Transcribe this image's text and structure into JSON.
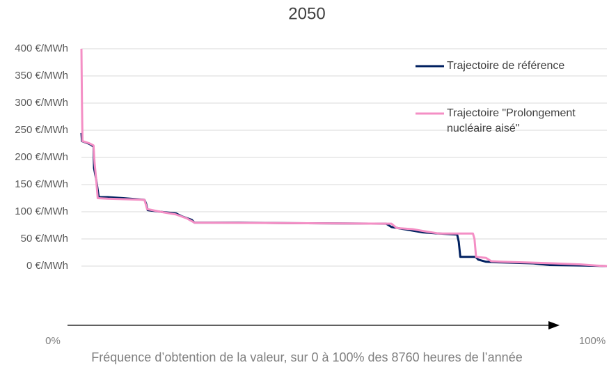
{
  "chart_data": {
    "type": "line",
    "title": "2050",
    "x_label": "Fréquence d’obtention de la valeur, sur 0 à 100% des 8760 heures de l’année",
    "xlim": [
      0,
      100
    ],
    "xticks": [
      {
        "value": 0,
        "label": "0%"
      },
      {
        "value": 100,
        "label": "100%"
      }
    ],
    "ylim": [
      0,
      400
    ],
    "yticks": [
      {
        "value": 0,
        "label": "0 €/MWh"
      },
      {
        "value": 50,
        "label": "50 €/MWh"
      },
      {
        "value": 100,
        "label": "100 €/MWh"
      },
      {
        "value": 150,
        "label": "150 €/MWh"
      },
      {
        "value": 200,
        "label": "200 €/MWh"
      },
      {
        "value": 250,
        "label": "250 €/MWh"
      },
      {
        "value": 300,
        "label": "300 €/MWh"
      },
      {
        "value": 350,
        "label": "350 €/MWh"
      },
      {
        "value": 400,
        "label": "400 €/MWh"
      }
    ],
    "grid": true,
    "legend": "upper right",
    "series": [
      {
        "name": "Trajectoire de référence",
        "color": "#002060",
        "x": [
          0,
          0.1,
          1.5,
          2.3,
          2.4,
          2.8,
          3.1,
          3.3,
          5,
          8,
          12,
          12.3,
          12.6,
          15,
          18,
          19,
          21,
          21.5,
          30,
          40,
          58,
          59,
          62,
          65,
          68,
          71.5,
          71.8,
          72.1,
          75,
          75.5,
          77,
          79,
          86,
          89,
          96,
          100
        ],
        "values": [
          245,
          230,
          225,
          220,
          180,
          160,
          140,
          127,
          127,
          125,
          122,
          115,
          103,
          100,
          97,
          92,
          85,
          80,
          80,
          79,
          78,
          72,
          67,
          62,
          60,
          58,
          45,
          17,
          17,
          12,
          8,
          7,
          5,
          2,
          1,
          0
        ]
      },
      {
        "name": "Trajectoire \"Prolongement nucléaire aisé\"",
        "color": "#f48fc5",
        "x": [
          0,
          0.1,
          0.2,
          1.5,
          2.3,
          2.5,
          2.8,
          3.1,
          5,
          12,
          12.5,
          15,
          18,
          20,
          21.5,
          40,
          59,
          60,
          63,
          66,
          68,
          74.5,
          74.8,
          75.1,
          77,
          78,
          80,
          90,
          95,
          98,
          100
        ],
        "values": [
          400,
          300,
          230,
          226,
          222,
          190,
          160,
          125,
          124,
          122,
          105,
          100,
          95,
          88,
          80,
          79,
          78,
          70,
          68,
          63,
          60,
          60,
          50,
          17,
          15,
          9,
          8,
          5,
          3,
          1,
          0
        ]
      }
    ]
  }
}
